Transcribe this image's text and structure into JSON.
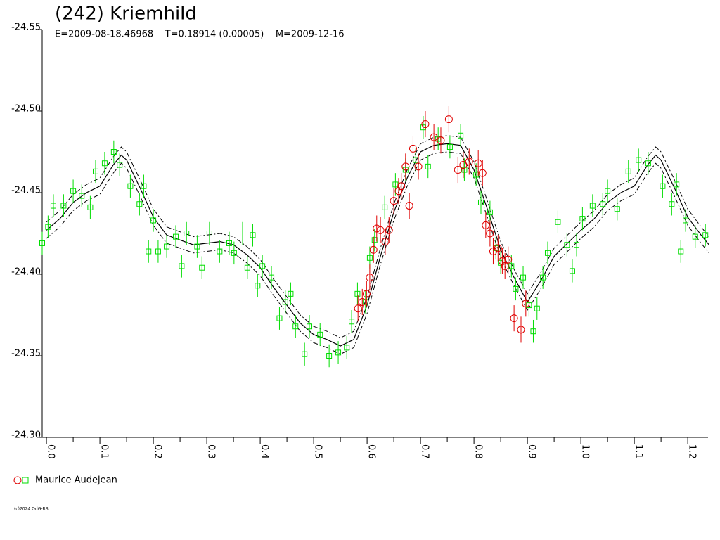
{
  "chart_data": {
    "type": "scatter",
    "title": "(242) Kriemhild",
    "subtitle": "E=2009-08-18.46968    T=0.18914 (0.00005)    M=2009-12-16",
    "footer": "(c)2024 OdG-RB",
    "xlim": [
      -0.008,
      1.238
    ],
    "ylim": [
      -24.3,
      -24.55
    ],
    "xticks": [
      {
        "value": 0,
        "label": "0.0"
      },
      0.1,
      0.2,
      0.3,
      0.4,
      0.5,
      0.6,
      0.7,
      0.8,
      0.9,
      {
        "value": 1,
        "label": "1.0"
      },
      1.1,
      1.2
    ],
    "xticks_minor": [
      0.05,
      0.15,
      0.25,
      0.35,
      0.45,
      0.55,
      0.65,
      0.75,
      0.85,
      0.95,
      1.05,
      1.15
    ],
    "yticks": [
      {
        "value": -24.3,
        "label": "-24.30"
      },
      -24.35,
      {
        "value": -24.4,
        "label": "-24.40"
      },
      -24.45,
      {
        "value": -24.5,
        "label": "-24.50"
      },
      -24.55
    ],
    "series": [
      {
        "name": "Maurice Audejean",
        "color": "#e00000",
        "marker": "circle",
        "error": 0.008,
        "x": [
          0.583,
          0.591,
          0.599,
          0.605,
          0.612,
          0.618,
          0.625,
          0.634,
          0.641,
          0.65,
          0.659,
          0.664,
          0.672,
          0.679,
          0.686,
          0.696,
          0.709,
          0.725,
          0.738,
          0.753,
          0.77,
          0.78,
          0.791,
          0.808,
          0.816,
          0.822,
          0.83,
          0.836,
          0.845,
          0.853,
          0.858,
          0.864,
          0.875,
          0.888,
          0.897
        ],
        "values": [
          -24.379,
          -24.383,
          -24.388,
          -24.398,
          -24.415,
          -24.428,
          -24.427,
          -24.42,
          -24.427,
          -24.445,
          -24.451,
          -24.454,
          -24.466,
          -24.442,
          -24.477,
          -24.466,
          -24.492,
          -24.484,
          -24.482,
          -24.495,
          -24.464,
          -24.467,
          -24.469,
          -24.468,
          -24.462,
          -24.43,
          -24.425,
          -24.414,
          -24.416,
          -24.408,
          -24.405,
          -24.409,
          -24.373,
          -24.366,
          -24.382
        ]
      },
      {
        "color": "#00dd00",
        "marker": "square",
        "error": 0.007,
        "x": [
          -0.008,
          0.003,
          0.013,
          0.032,
          0.05,
          0.066,
          0.082,
          0.092,
          0.109,
          0.126,
          0.137,
          0.157,
          0.174,
          0.182,
          0.191,
          0.2,
          0.209,
          0.225,
          0.242,
          0.253,
          0.262,
          0.282,
          0.291,
          0.305,
          0.324,
          0.342,
          0.351,
          0.367,
          0.376,
          0.386,
          0.395,
          0.404,
          0.421,
          0.436,
          0.447,
          0.457,
          0.466,
          0.483,
          0.492,
          0.512,
          0.529,
          0.546,
          0.562,
          0.571,
          0.582,
          0.597,
          0.605,
          0.614,
          0.633,
          0.653,
          0.672,
          0.691,
          0.705,
          0.714,
          0.733,
          0.755,
          0.775,
          0.782,
          0.804,
          0.813,
          0.83,
          0.841,
          0.85,
          0.87,
          0.878,
          0.892,
          0.903,
          0.911,
          0.918,
          0.929,
          0.938,
          0.957,
          0.974,
          0.984,
          0.992,
          1.003,
          1.022,
          1.041,
          1.05,
          1.068,
          1.089,
          1.108,
          1.126,
          1.153,
          1.17,
          1.179,
          1.187,
          1.196,
          1.214,
          1.233
        ],
        "values": [
          -24.419,
          -24.429,
          -24.442,
          -24.442,
          -24.451,
          -24.448,
          -24.441,
          -24.463,
          -24.468,
          -24.475,
          -24.467,
          -24.454,
          -24.443,
          -24.454,
          -24.414,
          -24.433,
          -24.414,
          -24.417,
          -24.423,
          -24.405,
          -24.425,
          -24.417,
          -24.404,
          -24.425,
          -24.414,
          -24.419,
          -24.413,
          -24.425,
          -24.404,
          -24.424,
          -24.393,
          -24.405,
          -24.398,
          -24.373,
          -24.383,
          -24.388,
          -24.368,
          -24.351,
          -24.368,
          -24.363,
          -24.35,
          -24.352,
          -24.355,
          -24.371,
          -24.388,
          -24.383,
          -24.41,
          -24.421,
          -24.441,
          -24.455,
          -24.464,
          -24.47,
          -24.49,
          -24.466,
          -24.483,
          -24.478,
          -24.485,
          -24.464,
          -24.461,
          -24.444,
          -24.438,
          -24.416,
          -24.407,
          -24.405,
          -24.391,
          -24.398,
          -24.381,
          -24.365,
          -24.379,
          -24.398,
          -24.413,
          -24.432,
          -24.418,
          -24.402,
          -24.418,
          -24.434,
          -24.442,
          -24.443,
          -24.451,
          -24.44,
          -24.463,
          -24.47,
          -24.468,
          -24.454,
          -24.443,
          -24.455,
          -24.414,
          -24.433,
          -24.423,
          -24.424
        ]
      }
    ],
    "curve": {
      "color": "#000000",
      "error": 0.005,
      "x": [
        0,
        0.025,
        0.05,
        0.075,
        0.1,
        0.125,
        0.14,
        0.15,
        0.175,
        0.2,
        0.225,
        0.25,
        0.275,
        0.3,
        0.325,
        0.35,
        0.375,
        0.4,
        0.425,
        0.45,
        0.475,
        0.5,
        0.525,
        0.55,
        0.575,
        0.6,
        0.625,
        0.65,
        0.675,
        0.7,
        0.725,
        0.75,
        0.775,
        0.8,
        0.825,
        0.85,
        0.875,
        0.9,
        0.925,
        0.95,
        0.975,
        1.0,
        1.025,
        1.05,
        1.075,
        1.1,
        1.125,
        1.14,
        1.15,
        1.175,
        1.2,
        1.225,
        1.24
      ],
      "values": [
        -24.427,
        -24.434,
        -24.444,
        -24.45,
        -24.454,
        -24.467,
        -24.473,
        -24.47,
        -24.453,
        -24.435,
        -24.424,
        -24.421,
        -24.418,
        -24.419,
        -24.42,
        -24.418,
        -24.412,
        -24.404,
        -24.392,
        -24.381,
        -24.37,
        -24.363,
        -24.36,
        -24.356,
        -24.36,
        -24.381,
        -24.411,
        -24.438,
        -24.459,
        -24.475,
        -24.479,
        -24.48,
        -24.479,
        -24.464,
        -24.44,
        -24.415,
        -24.398,
        -24.383,
        -24.396,
        -24.411,
        -24.419,
        -24.427,
        -24.434,
        -24.444,
        -24.45,
        -24.454,
        -24.467,
        -24.473,
        -24.47,
        -24.453,
        -24.435,
        -24.424,
        -24.418
      ]
    }
  }
}
